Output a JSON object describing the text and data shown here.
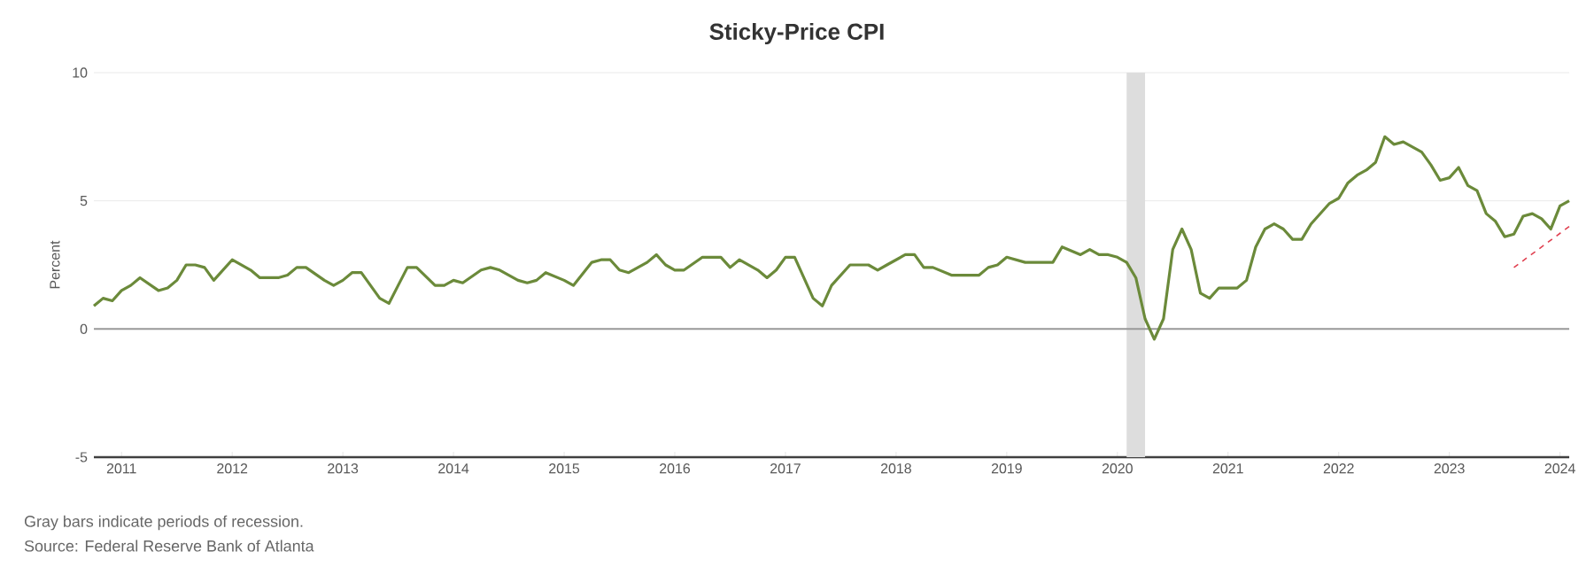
{
  "chart_data": {
    "type": "line",
    "title": "Sticky-Price CPI",
    "ylabel": "Percent",
    "annotations": [
      "Gray bars indicate periods of recession.",
      "Source: Federal Reserve Bank of Atlanta"
    ],
    "xlim": [
      "2010-10",
      "2024-02"
    ],
    "xticks": [
      "2011",
      "2012",
      "2013",
      "2014",
      "2015",
      "2016",
      "2017",
      "2018",
      "2019",
      "2020",
      "2021",
      "2022",
      "2023",
      "2024"
    ],
    "ylim": [
      -5,
      10
    ],
    "yticks": [
      -5,
      0,
      5,
      10
    ],
    "grid": "y",
    "bands": [
      {
        "axis": "x",
        "from": "2020-02",
        "to": "2020-04",
        "color": "#dddddd"
      }
    ],
    "ref_lines": [
      {
        "axis": "y",
        "value": 0,
        "color": "#999999"
      }
    ],
    "series": [
      {
        "color": "#6b8a3a",
        "x": [
          "2010-10",
          "2010-11",
          "2010-12",
          "2011-01",
          "2011-02",
          "2011-03",
          "2011-05",
          "2011-06",
          "2011-07",
          "2011-08",
          "2011-09",
          "2011-10",
          "2011-11",
          "2012-01",
          "2012-03",
          "2012-04",
          "2012-06",
          "2012-07",
          "2012-08",
          "2012-09",
          "2012-11",
          "2012-12",
          "2013-01",
          "2013-02",
          "2013-03",
          "2013-05",
          "2013-06",
          "2013-07",
          "2013-08",
          "2013-09",
          "2013-11",
          "2013-12",
          "2014-01",
          "2014-02",
          "2014-04",
          "2014-05",
          "2014-06",
          "2014-08",
          "2014-09",
          "2014-10",
          "2014-11",
          "2015-01",
          "2015-02",
          "2015-04",
          "2015-05",
          "2015-06",
          "2015-07",
          "2015-08",
          "2015-10",
          "2015-11",
          "2015-12",
          "2016-01",
          "2016-02",
          "2016-04",
          "2016-06",
          "2016-07",
          "2016-08",
          "2016-10",
          "2016-11",
          "2016-12",
          "2017-01",
          "2017-02",
          "2017-04",
          "2017-05",
          "2017-06",
          "2017-08",
          "2017-10",
          "2017-11",
          "2017-12",
          "2018-02",
          "2018-03",
          "2018-04",
          "2018-05",
          "2018-07",
          "2018-10",
          "2018-11",
          "2018-12",
          "2019-01",
          "2019-03",
          "2019-04",
          "2019-05",
          "2019-06",
          "2019-07",
          "2019-09",
          "2019-10",
          "2019-11",
          "2019-12",
          "2020-01",
          "2020-02",
          "2020-03",
          "2020-04",
          "2020-05",
          "2020-06",
          "2020-07",
          "2020-08",
          "2020-09",
          "2020-10",
          "2020-11",
          "2020-12",
          "2021-01",
          "2021-02",
          "2021-03",
          "2021-04",
          "2021-05",
          "2021-06",
          "2021-07",
          "2021-08",
          "2021-09",
          "2021-10",
          "2021-12",
          "2022-01",
          "2022-02",
          "2022-03",
          "2022-04",
          "2022-05",
          "2022-06",
          "2022-07",
          "2022-08",
          "2022-09",
          "2022-10",
          "2022-11",
          "2022-12",
          "2023-01",
          "2023-02",
          "2023-03",
          "2023-04",
          "2023-05",
          "2023-06",
          "2023-07",
          "2023-08",
          "2023-09",
          "2023-10",
          "2023-11",
          "2023-12",
          "2024-01",
          "2024-02"
        ],
        "values": [
          0.9,
          1.2,
          1.1,
          1.5,
          1.7,
          2.0,
          1.5,
          1.6,
          1.9,
          2.5,
          2.5,
          2.4,
          1.9,
          2.7,
          2.3,
          2.0,
          2.0,
          2.1,
          2.4,
          2.4,
          1.9,
          1.7,
          1.9,
          2.2,
          2.2,
          1.2,
          1.0,
          1.7,
          2.4,
          2.4,
          1.7,
          1.7,
          1.9,
          1.8,
          2.3,
          2.4,
          2.3,
          1.9,
          1.8,
          1.9,
          2.2,
          1.9,
          1.7,
          2.6,
          2.7,
          2.7,
          2.3,
          2.2,
          2.6,
          2.9,
          2.5,
          2.3,
          2.3,
          2.8,
          2.8,
          2.4,
          2.7,
          2.3,
          2.0,
          2.3,
          2.8,
          2.8,
          1.2,
          0.9,
          1.7,
          2.5,
          2.5,
          2.3,
          2.5,
          2.9,
          2.9,
          2.4,
          2.4,
          2.1,
          2.1,
          2.4,
          2.5,
          2.8,
          2.6,
          2.6,
          2.6,
          2.6,
          3.2,
          2.9,
          3.1,
          2.9,
          2.9,
          2.8,
          2.6,
          2.0,
          0.4,
          -0.4,
          0.4,
          3.1,
          3.9,
          3.1,
          1.4,
          1.2,
          1.6,
          1.6,
          1.6,
          1.9,
          3.2,
          3.9,
          4.1,
          3.9,
          3.5,
          3.5,
          4.1,
          4.9,
          5.1,
          5.7,
          6.0,
          6.2,
          6.5,
          7.5,
          7.2,
          7.3,
          7.1,
          6.9,
          6.4,
          5.8,
          5.9,
          6.3,
          5.6,
          5.4,
          4.5,
          4.2,
          3.6,
          3.7,
          4.4,
          4.5,
          4.3,
          3.9,
          4.8,
          5.0
        ]
      },
      {
        "type": "line",
        "color": "#e04050",
        "line_style": "dashed",
        "x": [
          "2023-08",
          "2024-02"
        ],
        "values": [
          2.4,
          4.0
        ]
      }
    ]
  }
}
